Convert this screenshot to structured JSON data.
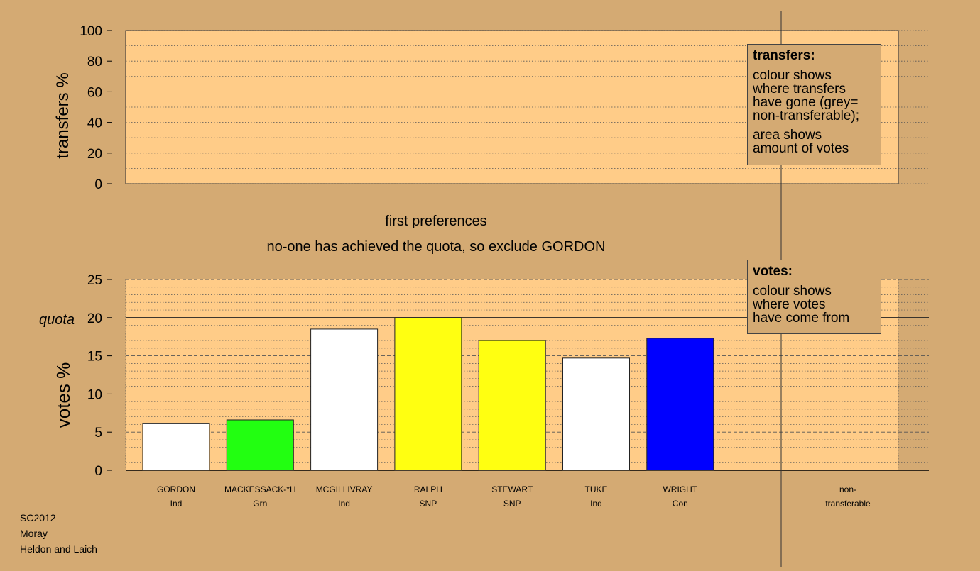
{
  "chart_data": [
    {
      "type": "bar",
      "title": "",
      "ylabel": "transfers %",
      "ylim": [
        0,
        100
      ],
      "yticks": [
        "0",
        "20",
        "40",
        "60",
        "80",
        "100"
      ],
      "grid": true,
      "categories": [],
      "values": []
    },
    {
      "type": "bar",
      "title": "first preferences",
      "subtitle": "no-one has achieved the quota, so exclude GORDON",
      "ylabel": "votes %",
      "ylim": [
        0,
        25
      ],
      "yticks": [
        "0",
        "5",
        "10",
        "15",
        "20",
        "25"
      ],
      "quota": 20,
      "quota_label": "quota",
      "grid": true,
      "categories": [
        {
          "name": "GORDON",
          "party": "Ind"
        },
        {
          "name": "MACKESSACK-*H",
          "party": "Grn"
        },
        {
          "name": "MCGILLIVRAY",
          "party": "Ind"
        },
        {
          "name": "RALPH",
          "party": "SNP"
        },
        {
          "name": "STEWART",
          "party": "SNP"
        },
        {
          "name": "TUKE",
          "party": "Ind"
        },
        {
          "name": "WRIGHT",
          "party": "Con"
        }
      ],
      "values": [
        6.1,
        6.6,
        18.5,
        20.0,
        17.0,
        14.7,
        17.3
      ],
      "colors": [
        "#ffffff",
        "#22ff11",
        "#ffffff",
        "#ffff11",
        "#ffff11",
        "#ffffff",
        "#0000ff"
      ],
      "nontransferable_label_1": "non-",
      "nontransferable_label_2": "transferable"
    }
  ],
  "legend_transfers": {
    "title": "transfers:",
    "lines_a": [
      "colour shows",
      "where transfers",
      "have gone (grey=",
      "non-transferable);"
    ],
    "lines_b": [
      "area shows",
      "amount of votes"
    ]
  },
  "legend_votes": {
    "title": "votes:",
    "lines": [
      "colour shows",
      "where votes",
      "have come from"
    ]
  },
  "footer": {
    "line1": "SC2012",
    "line2": "Moray",
    "line3": "Heldon and Laich"
  },
  "colors": {
    "background": "#d4aa73",
    "plot_fill": "#ffcc88"
  }
}
